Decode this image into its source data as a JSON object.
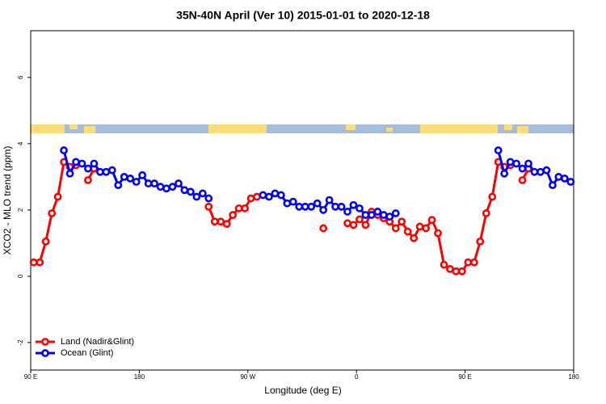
{
  "chart_data": {
    "type": "line",
    "title": "35N-40N April (Ver 10)   2015-01-01 to 2020-12-18",
    "x_label": "Longitude (deg E)",
    "y_label": "XCO2 - MLO trend (ppm)",
    "xlim": [
      90,
      540
    ],
    "xticks": [
      {
        "value": 90,
        "label": "90 E"
      },
      {
        "value": 180,
        "label": "180"
      },
      {
        "value": 270,
        "label": "90 W"
      },
      {
        "value": 360,
        "label": "0"
      },
      {
        "value": 450,
        "label": "90 E"
      },
      {
        "value": 540,
        "label": "180"
      }
    ],
    "ylim": [
      -2.83,
      7.41
    ],
    "yticks": [
      -2,
      0,
      2,
      4,
      6
    ],
    "legend": "bottom-left",
    "x": [
      92.5,
      97.5,
      102.5,
      107.5,
      112.5,
      117.5,
      122.5,
      127.5,
      132.5,
      137.5,
      142.5,
      147.5,
      152.5,
      157.5,
      162.5,
      167.5,
      172.5,
      177.5,
      182.5,
      187.5,
      192.5,
      197.5,
      202.5,
      207.5,
      212.5,
      217.5,
      222.5,
      227.5,
      232.5,
      237.5,
      242.5,
      247.5,
      252.5,
      257.5,
      262.5,
      267.5,
      272.5,
      277.5,
      282.5,
      287.5,
      292.5,
      297.5,
      302.5,
      307.5,
      312.5,
      317.5,
      322.5,
      327.5,
      332.5,
      337.5,
      342.5,
      347.5,
      352.5,
      357.5,
      362.5,
      367.5,
      372.5,
      377.5,
      382.5,
      387.5,
      392.5,
      397.5,
      402.5,
      407.5,
      412.5,
      417.5,
      422.5,
      427.5,
      432.5,
      437.5,
      442.5,
      447.5,
      452.5,
      457.5,
      462.5,
      467.5,
      472.5,
      477.5,
      482.5,
      487.5,
      492.5,
      497.5,
      502.5,
      507.5,
      512.5,
      517.5,
      522.5,
      527.5,
      532.5,
      537.5
    ],
    "series": [
      {
        "name": "Land (Nadir&Glint)",
        "color": "#ff0000",
        "values": [
          0.42,
          0.42,
          1.05,
          1.9,
          2.4,
          3.45,
          3.3,
          3.35,
          null,
          2.9,
          3.25,
          null,
          null,
          null,
          null,
          null,
          null,
          null,
          null,
          null,
          null,
          null,
          null,
          null,
          null,
          null,
          null,
          null,
          null,
          2.1,
          1.65,
          1.65,
          1.58,
          1.85,
          2.05,
          2.05,
          2.35,
          2.4,
          null,
          null,
          null,
          null,
          null,
          null,
          null,
          null,
          null,
          null,
          1.45,
          null,
          null,
          null,
          1.6,
          1.55,
          1.72,
          1.55,
          1.95,
          1.85,
          1.75,
          1.65,
          1.45,
          1.65,
          1.35,
          1.15,
          1.5,
          1.45,
          1.7,
          1.3,
          0.35,
          0.22,
          0.15,
          0.15,
          0.42,
          0.42,
          1.05,
          1.9,
          2.4,
          3.45,
          3.3,
          3.35,
          null,
          2.9,
          3.25,
          null,
          null,
          null,
          null,
          null,
          null,
          null
        ]
      },
      {
        "name": "Ocean (Glint)",
        "color": "#0000ff",
        "values": [
          null,
          null,
          null,
          null,
          null,
          3.8,
          3.1,
          3.45,
          3.4,
          3.25,
          3.4,
          3.15,
          3.15,
          3.2,
          2.75,
          3.0,
          2.95,
          2.85,
          3.05,
          2.8,
          2.8,
          2.7,
          2.65,
          2.7,
          2.8,
          2.6,
          2.55,
          2.4,
          2.5,
          2.35,
          null,
          null,
          null,
          null,
          null,
          null,
          null,
          null,
          2.45,
          2.4,
          2.5,
          2.45,
          2.2,
          2.25,
          2.1,
          2.1,
          2.1,
          2.2,
          2.0,
          2.3,
          2.1,
          2.1,
          1.95,
          2.15,
          2.05,
          1.85,
          1.85,
          1.95,
          1.85,
          1.8,
          1.9,
          null,
          null,
          null,
          null,
          null,
          null,
          null,
          null,
          null,
          null,
          null,
          null,
          null,
          null,
          null,
          null,
          3.8,
          3.1,
          3.45,
          3.4,
          3.25,
          3.4,
          3.15,
          3.15,
          3.2,
          2.75,
          3.0,
          2.95,
          2.85
        ]
      }
    ]
  }
}
